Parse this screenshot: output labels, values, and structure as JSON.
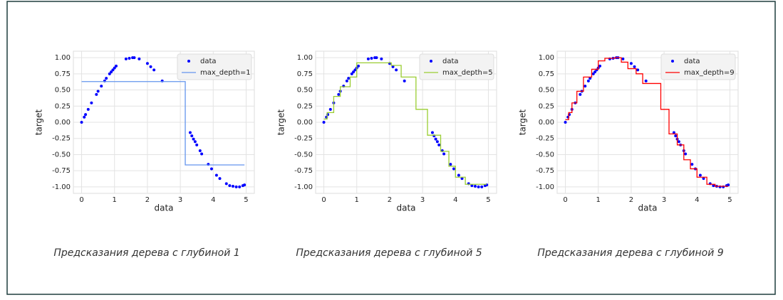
{
  "chart_data": [
    {
      "type": "scatter",
      "caption": "Предсказания дерева с глубиной 1",
      "xlabel": "data",
      "ylabel": "target",
      "xlim": [
        -0.25,
        5.25
      ],
      "ylim": [
        -1.1,
        1.1
      ],
      "xticks": [
        0,
        1,
        2,
        3,
        4,
        5
      ],
      "yticks": [
        {
          "value": -1,
          "label": "-1.00"
        },
        {
          "value": -0.75,
          "label": "-0.75"
        },
        {
          "value": -0.5,
          "label": "-0.50"
        },
        {
          "value": -0.25,
          "label": "-0.25"
        },
        {
          "value": 0,
          "label": "0.00"
        },
        {
          "value": 0.25,
          "label": "0.25"
        },
        {
          "value": 0.5,
          "label": "0.50"
        },
        {
          "value": 0.75,
          "label": "0.75"
        },
        {
          "value": 1,
          "label": "1.00"
        }
      ],
      "grid": true,
      "legend": "upper right",
      "series": [
        {
          "name": "data",
          "kind": "points",
          "color": "#0000ff",
          "x": [
            0,
            0.08,
            0.12,
            0.2,
            0.3,
            0.45,
            0.5,
            0.6,
            0.7,
            0.75,
            0.85,
            0.9,
            0.95,
            1.0,
            1.05,
            1.35,
            1.45,
            1.55,
            1.6,
            1.75,
            2.0,
            2.1,
            2.2,
            2.45,
            3.3,
            3.35,
            3.4,
            3.45,
            3.5,
            3.6,
            3.65,
            3.85,
            3.95,
            4.1,
            4.2,
            4.4,
            4.5,
            4.6,
            4.7,
            4.8,
            4.9,
            4.95
          ],
          "values": [
            0,
            0.08,
            0.12,
            0.2,
            0.3,
            0.43,
            0.48,
            0.56,
            0.64,
            0.68,
            0.75,
            0.78,
            0.81,
            0.84,
            0.87,
            0.98,
            0.99,
            1.0,
            1.0,
            0.98,
            0.91,
            0.86,
            0.81,
            0.64,
            -0.16,
            -0.21,
            -0.26,
            -0.3,
            -0.35,
            -0.44,
            -0.49,
            -0.65,
            -0.72,
            -0.82,
            -0.87,
            -0.95,
            -0.98,
            -0.99,
            -1.0,
            -1.0,
            -0.98,
            -0.97
          ]
        },
        {
          "name": "max_depth=1",
          "kind": "line",
          "color": "#6495ed",
          "x": [
            0,
            3.15,
            3.15,
            4.95
          ],
          "values": [
            0.63,
            0.63,
            -0.66,
            -0.66
          ]
        }
      ]
    },
    {
      "type": "scatter",
      "caption": "Предсказания дерева с глубиной 5",
      "xlabel": "data",
      "ylabel": "target",
      "xlim": [
        -0.25,
        5.25
      ],
      "ylim": [
        -1.1,
        1.1
      ],
      "xticks": [
        0,
        1,
        2,
        3,
        4,
        5
      ],
      "yticks": [
        {
          "value": -1,
          "label": "-1.00"
        },
        {
          "value": -0.75,
          "label": "-0.75"
        },
        {
          "value": -0.5,
          "label": "-0.50"
        },
        {
          "value": -0.25,
          "label": "-0.25"
        },
        {
          "value": 0,
          "label": "0.00"
        },
        {
          "value": 0.25,
          "label": "0.25"
        },
        {
          "value": 0.5,
          "label": "0.50"
        },
        {
          "value": 0.75,
          "label": "0.75"
        },
        {
          "value": 1,
          "label": "1.00"
        }
      ],
      "grid": true,
      "legend": "upper right",
      "series": [
        {
          "name": "data",
          "kind": "points",
          "color": "#0000ff",
          "x": [
            0,
            0.08,
            0.12,
            0.2,
            0.3,
            0.45,
            0.5,
            0.6,
            0.7,
            0.75,
            0.85,
            0.9,
            0.95,
            1.0,
            1.05,
            1.35,
            1.45,
            1.55,
            1.6,
            1.75,
            2.0,
            2.1,
            2.2,
            2.45,
            3.3,
            3.35,
            3.4,
            3.45,
            3.5,
            3.6,
            3.65,
            3.85,
            3.95,
            4.1,
            4.2,
            4.4,
            4.5,
            4.6,
            4.7,
            4.8,
            4.9,
            4.95
          ],
          "values": [
            0,
            0.08,
            0.12,
            0.2,
            0.3,
            0.43,
            0.48,
            0.56,
            0.64,
            0.68,
            0.75,
            0.78,
            0.81,
            0.84,
            0.87,
            0.98,
            0.99,
            1.0,
            1.0,
            0.98,
            0.91,
            0.86,
            0.81,
            0.64,
            -0.16,
            -0.21,
            -0.26,
            -0.3,
            -0.35,
            -0.44,
            -0.49,
            -0.65,
            -0.72,
            -0.82,
            -0.87,
            -0.95,
            -0.98,
            -0.99,
            -1.0,
            -1.0,
            -0.98,
            -0.97
          ]
        },
        {
          "name": "max_depth=5",
          "kind": "line",
          "color": "#9acd32",
          "x": [
            0,
            0.1,
            0.1,
            0.3,
            0.3,
            0.5,
            0.5,
            0.8,
            0.8,
            1.0,
            1.0,
            2.05,
            2.05,
            2.35,
            2.35,
            2.8,
            2.8,
            3.15,
            3.15,
            3.55,
            3.55,
            3.8,
            3.8,
            4.0,
            4.0,
            4.3,
            4.3,
            4.95
          ],
          "values": [
            0.05,
            0.05,
            0.15,
            0.15,
            0.4,
            0.4,
            0.55,
            0.55,
            0.7,
            0.7,
            0.92,
            0.92,
            0.88,
            0.88,
            0.7,
            0.7,
            0.2,
            0.2,
            -0.2,
            -0.2,
            -0.45,
            -0.45,
            -0.68,
            -0.68,
            -0.85,
            -0.85,
            -0.96,
            -0.96
          ]
        }
      ]
    },
    {
      "type": "scatter",
      "caption": "Предсказания дерева с глубиной 9",
      "xlabel": "data",
      "ylabel": "target",
      "xlim": [
        -0.25,
        5.25
      ],
      "ylim": [
        -1.1,
        1.1
      ],
      "xticks": [
        0,
        1,
        2,
        3,
        4,
        5
      ],
      "yticks": [
        {
          "value": -1,
          "label": "-1.00"
        },
        {
          "value": -0.75,
          "label": "-0.75"
        },
        {
          "value": -0.5,
          "label": "-0.50"
        },
        {
          "value": -0.25,
          "label": "-0.25"
        },
        {
          "value": 0,
          "label": "0.00"
        },
        {
          "value": 0.25,
          "label": "0.25"
        },
        {
          "value": 0.5,
          "label": "0.50"
        },
        {
          "value": 0.75,
          "label": "0.75"
        },
        {
          "value": 1,
          "label": "1.00"
        }
      ],
      "grid": true,
      "legend": "upper right",
      "series": [
        {
          "name": "data",
          "kind": "points",
          "color": "#0000ff",
          "x": [
            0,
            0.08,
            0.12,
            0.2,
            0.3,
            0.45,
            0.5,
            0.6,
            0.7,
            0.75,
            0.85,
            0.9,
            0.95,
            1.0,
            1.05,
            1.35,
            1.45,
            1.55,
            1.6,
            1.75,
            2.0,
            2.1,
            2.2,
            2.45,
            3.3,
            3.35,
            3.4,
            3.45,
            3.5,
            3.6,
            3.65,
            3.85,
            3.95,
            4.1,
            4.2,
            4.4,
            4.5,
            4.6,
            4.7,
            4.8,
            4.9,
            4.95
          ],
          "values": [
            0,
            0.08,
            0.12,
            0.2,
            0.3,
            0.43,
            0.48,
            0.56,
            0.64,
            0.68,
            0.75,
            0.78,
            0.81,
            0.84,
            0.87,
            0.98,
            0.99,
            1.0,
            1.0,
            0.98,
            0.91,
            0.86,
            0.81,
            0.64,
            -0.16,
            -0.21,
            -0.26,
            -0.3,
            -0.35,
            -0.44,
            -0.49,
            -0.65,
            -0.72,
            -0.82,
            -0.87,
            -0.95,
            -0.98,
            -0.99,
            -1.0,
            -1.0,
            -0.98,
            -0.97
          ]
        },
        {
          "name": "max_depth=9",
          "kind": "line",
          "color": "#ff0000",
          "x": [
            0,
            0.1,
            0.1,
            0.2,
            0.2,
            0.35,
            0.35,
            0.55,
            0.55,
            0.8,
            0.8,
            1.0,
            1.0,
            1.2,
            1.2,
            1.5,
            1.5,
            1.7,
            1.7,
            1.9,
            1.9,
            2.15,
            2.15,
            2.35,
            2.35,
            2.9,
            2.9,
            3.15,
            3.15,
            3.4,
            3.4,
            3.6,
            3.6,
            3.8,
            3.8,
            4.0,
            4.0,
            4.3,
            4.3,
            4.55,
            4.55,
            4.95
          ],
          "values": [
            0.04,
            0.04,
            0.15,
            0.15,
            0.3,
            0.3,
            0.48,
            0.48,
            0.7,
            0.7,
            0.82,
            0.82,
            0.95,
            0.95,
            0.99,
            0.99,
            1.0,
            1.0,
            0.93,
            0.93,
            0.83,
            0.83,
            0.75,
            0.75,
            0.6,
            0.6,
            0.2,
            0.2,
            -0.18,
            -0.18,
            -0.35,
            -0.35,
            -0.58,
            -0.58,
            -0.72,
            -0.72,
            -0.85,
            -0.85,
            -0.96,
            -0.96,
            -0.99,
            -0.99
          ]
        }
      ]
    }
  ]
}
